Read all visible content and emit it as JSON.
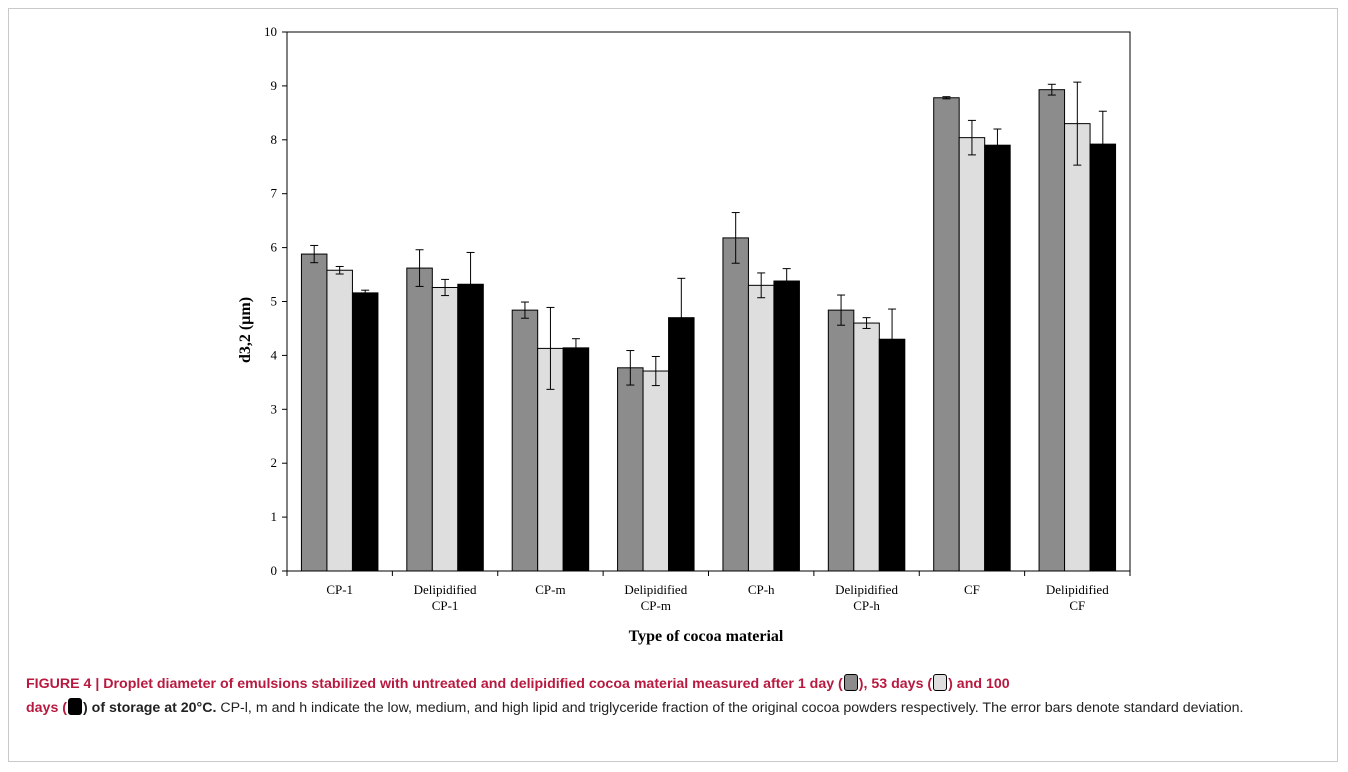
{
  "chart_data": {
    "type": "bar",
    "ylabel": "d3,2 (µm)",
    "xlabel": "Type of cocoa material",
    "ylim": [
      0,
      10
    ],
    "yticks": [
      0,
      1,
      2,
      3,
      4,
      5,
      6,
      7,
      8,
      9,
      10
    ],
    "grid": false,
    "categories": [
      [
        "CP-1"
      ],
      [
        "Delipidified",
        "CP-1"
      ],
      [
        "CP-m"
      ],
      [
        "Delipidified",
        "CP-m"
      ],
      [
        "CP-h"
      ],
      [
        "Delipidified",
        "CP-h"
      ],
      [
        "CF"
      ],
      [
        "Delipidified",
        "CF"
      ]
    ],
    "series": [
      {
        "color": "#8c8c8c",
        "values": [
          5.88,
          5.62,
          4.84,
          3.77,
          6.18,
          4.84,
          8.78,
          8.93
        ],
        "errors": [
          0.16,
          0.34,
          0.15,
          0.32,
          0.47,
          0.28,
          0.02,
          0.1
        ]
      },
      {
        "color": "#dedede",
        "values": [
          5.58,
          5.26,
          4.13,
          3.71,
          5.3,
          4.6,
          8.04,
          8.3
        ],
        "errors": [
          0.07,
          0.15,
          0.76,
          0.27,
          0.23,
          0.1,
          0.32,
          0.77
        ]
      },
      {
        "color": "#000000",
        "values": [
          5.16,
          5.32,
          4.14,
          4.7,
          5.38,
          4.3,
          7.9,
          7.92
        ],
        "errors": [
          0.05,
          0.59,
          0.17,
          0.73,
          0.23,
          0.56,
          0.3,
          0.61
        ]
      }
    ]
  },
  "caption": {
    "title_a": "FIGURE 4 | Droplet diameter of emulsions stabilized with untreated and delipidified cocoa material measured after 1 day (",
    "title_b": "), 53 days (",
    "title_c": ") and 100",
    "title_d": "days (",
    "title_e": ") of storage at 20°C.",
    "body": " CP-l, m and h indicate the low, medium, and high lipid and triglyceride fraction of the original cocoa powders respectively. The error bars denote standard deviation."
  }
}
